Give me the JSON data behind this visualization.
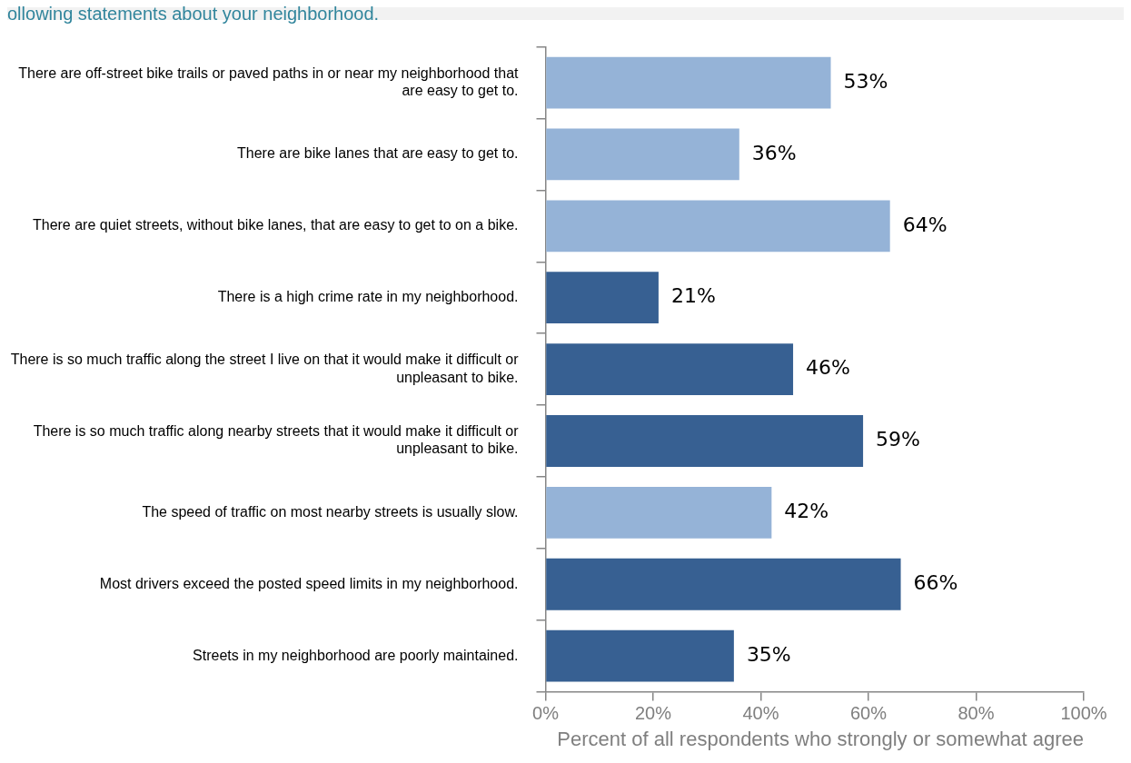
{
  "chart_data": {
    "type": "bar",
    "orientation": "horizontal",
    "title": "ollowing statements about your neighborhood.",
    "xlabel": "Percent of all respondents who strongly or somewhat agree",
    "categories": [
      "There are off-street bike trails or paved paths in or near my neighborhood that are easy to get to.",
      "There are bike lanes that are easy to get to.",
      "There are quiet streets, without bike lanes, that are easy to get to on a bike.",
      "There is a high crime rate in my neighborhood.",
      "There is so much traffic along the street I live on that it would make it difficult or unpleasant to bike.",
      "There is so much traffic along nearby streets that it would make it difficult or unpleasant to bike.",
      "The speed of traffic on most nearby streets is usually slow.",
      "Most drivers exceed the posted speed limits in my neighborhood.",
      "Streets in my neighborhood are poorly maintained."
    ],
    "values": [
      53,
      36,
      64,
      21,
      46,
      59,
      42,
      66,
      35
    ],
    "colors": [
      "#95b3d7",
      "#95b3d7",
      "#95b3d7",
      "#376092",
      "#376092",
      "#376092",
      "#95b3d7",
      "#376092",
      "#376092"
    ],
    "value_labels": [
      "53%",
      "36%",
      "64%",
      "21%",
      "46%",
      "59%",
      "42%",
      "66%",
      "35%"
    ],
    "xlim": [
      0,
      100
    ],
    "xticks": [
      {
        "value": 0,
        "label": "0%"
      },
      {
        "value": 20,
        "label": "20%"
      },
      {
        "value": 40,
        "label": "40%"
      },
      {
        "value": 60,
        "label": "60%"
      },
      {
        "value": 80,
        "label": "80%"
      },
      {
        "value": 100,
        "label": "100%"
      }
    ],
    "grid": false,
    "legend": false
  }
}
